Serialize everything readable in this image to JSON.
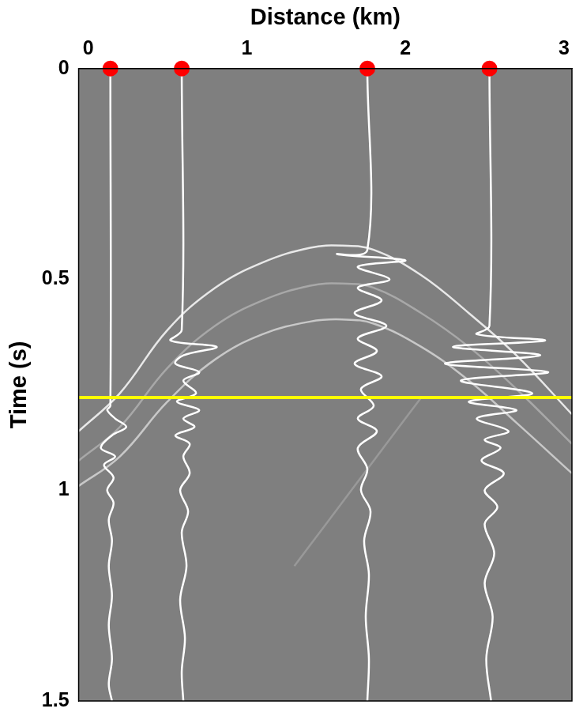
{
  "chart_data": {
    "type": "scatter",
    "x_label": "Distance (km)",
    "y_label": "Time (s)",
    "xlim": [
      -0.06,
      3.05
    ],
    "xticks": [
      0,
      1,
      2,
      3
    ],
    "ylim": [
      0,
      1.5
    ],
    "yticks": [
      0,
      0.5,
      1,
      1.5
    ],
    "grid": false,
    "series": [
      {
        "color": "#ffffff",
        "type": "line",
        "x": [
          0.14,
          0.14,
          0.12,
          0.17,
          0.24,
          0.15,
          0.08,
          0.17,
          0.1,
          0.16,
          0.12,
          0.16,
          0.13,
          0.15,
          0.13,
          0.15,
          0.13,
          0.15,
          0.13,
          0.15
        ],
        "y": [
          0,
          0.8,
          0.81,
          0.83,
          0.85,
          0.87,
          0.9,
          0.92,
          0.94,
          0.97,
          1.0,
          1.03,
          1.07,
          1.12,
          1.18,
          1.25,
          1.32,
          1.4,
          1.46,
          1.5
        ]
      },
      {
        "color": "#ffffff",
        "type": "line",
        "x": [
          0.59,
          0.59,
          0.52,
          0.81,
          0.6,
          0.55,
          0.7,
          0.6,
          0.68,
          0.56,
          0.7,
          0.6,
          0.67,
          0.55,
          0.64,
          0.6,
          0.64,
          0.58,
          0.63,
          0.59,
          0.62,
          0.58,
          0.61,
          0.59,
          0.6
        ],
        "y": [
          0,
          0.62,
          0.645,
          0.66,
          0.68,
          0.7,
          0.72,
          0.74,
          0.77,
          0.79,
          0.81,
          0.83,
          0.85,
          0.87,
          0.89,
          0.92,
          0.96,
          1.0,
          1.05,
          1.1,
          1.18,
          1.26,
          1.35,
          1.43,
          1.5
        ]
      },
      {
        "color": "#ffffff",
        "type": "line",
        "x": [
          1.76,
          1.76,
          1.57,
          2.0,
          1.7,
          1.9,
          1.7,
          1.85,
          1.68,
          1.88,
          1.7,
          1.82,
          1.68,
          1.85,
          1.72,
          1.8,
          1.7,
          1.82,
          1.7,
          1.76,
          1.72,
          1.78,
          1.74,
          1.77,
          1.75,
          1.77,
          1.76
        ],
        "y": [
          0,
          0.43,
          0.44,
          0.455,
          0.47,
          0.5,
          0.52,
          0.55,
          0.58,
          0.61,
          0.64,
          0.67,
          0.7,
          0.73,
          0.76,
          0.8,
          0.83,
          0.86,
          0.9,
          0.95,
          1.0,
          1.05,
          1.12,
          1.2,
          1.3,
          1.4,
          1.5
        ]
      },
      {
        "color": "#ffffff",
        "type": "line",
        "x": [
          2.53,
          2.53,
          2.45,
          2.88,
          2.3,
          2.85,
          2.25,
          2.9,
          2.35,
          2.8,
          2.4,
          2.7,
          2.45,
          2.65,
          2.5,
          2.6,
          2.48,
          2.62,
          2.5,
          2.58,
          2.5,
          2.56,
          2.5,
          2.55,
          2.51,
          2.54
        ],
        "y": [
          0,
          0.61,
          0.63,
          0.645,
          0.66,
          0.68,
          0.7,
          0.72,
          0.74,
          0.77,
          0.79,
          0.81,
          0.83,
          0.86,
          0.88,
          0.9,
          0.93,
          0.96,
          1.0,
          1.04,
          1.08,
          1.15,
          1.22,
          1.3,
          1.4,
          1.5
        ]
      }
    ],
    "events": [
      {
        "color": "#e8e8e8",
        "type": "line",
        "x": [
          -0.06,
          0.2,
          0.5,
          0.8,
          1.1,
          1.4,
          1.6,
          1.8,
          2.1,
          2.4,
          2.7,
          3.05
        ],
        "y": [
          0.86,
          0.77,
          0.62,
          0.52,
          0.46,
          0.425,
          0.42,
          0.43,
          0.49,
          0.58,
          0.68,
          0.82
        ]
      },
      {
        "color": "#a8a8a8",
        "type": "line",
        "x": [
          -0.06,
          0.2,
          0.5,
          0.8,
          1.1,
          1.4,
          1.6,
          1.8,
          2.1,
          2.4,
          2.7,
          3.05
        ],
        "y": [
          0.93,
          0.85,
          0.71,
          0.61,
          0.55,
          0.515,
          0.51,
          0.52,
          0.58,
          0.66,
          0.76,
          0.89
        ]
      },
      {
        "color": "#c8c8c8",
        "type": "line",
        "x": [
          -0.06,
          0.2,
          0.5,
          0.8,
          1.1,
          1.4,
          1.6,
          1.8,
          2.1,
          2.4,
          2.7,
          3.05
        ],
        "y": [
          0.99,
          0.92,
          0.79,
          0.69,
          0.63,
          0.6,
          0.595,
          0.605,
          0.66,
          0.74,
          0.84,
          0.96
        ]
      },
      {
        "color": "#999999",
        "type": "line",
        "x": [
          1.3,
          1.5,
          1.7,
          1.9,
          2.1
        ],
        "y": [
          1.18,
          1.08,
          0.98,
          0.88,
          0.78
        ]
      }
    ],
    "receivers": {
      "color": "#ff0000",
      "marker": "circle",
      "type": "scatter",
      "x": [
        0.14,
        0.59,
        1.76,
        2.53
      ],
      "y": [
        0,
        0,
        0,
        0
      ]
    },
    "lines": [
      {
        "color": "#ffff00",
        "type": "line",
        "x": [
          -0.06,
          3.05
        ],
        "y": [
          0.78,
          0.78
        ]
      }
    ]
  }
}
